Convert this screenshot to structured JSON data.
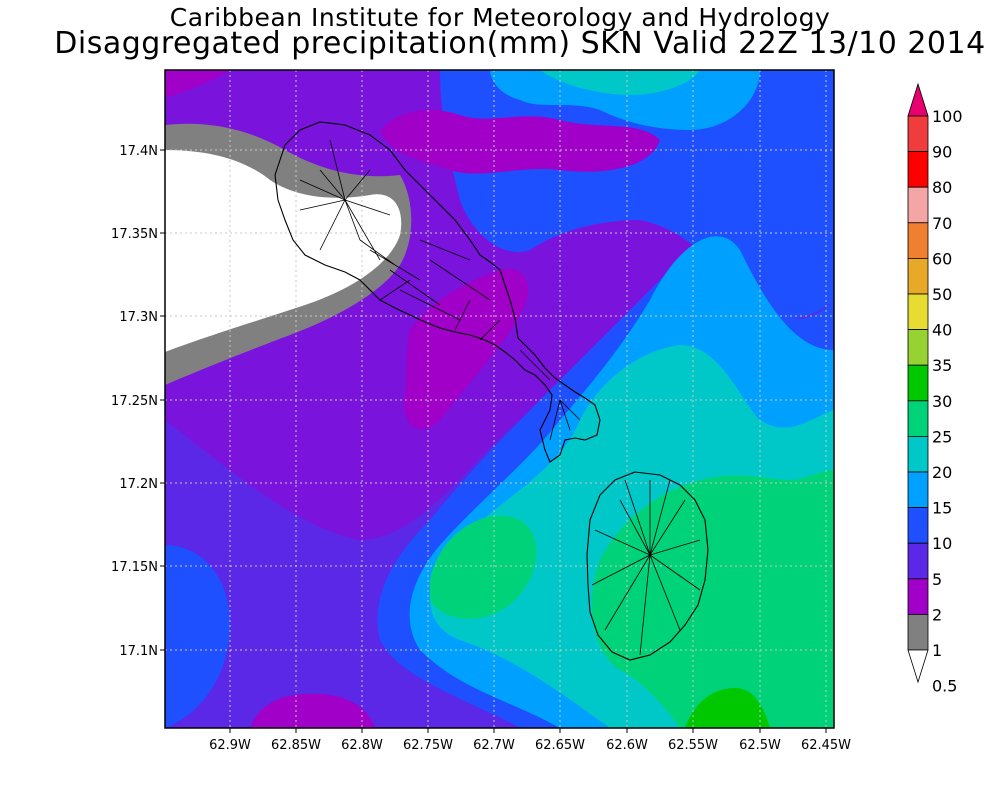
{
  "header": {
    "title": "Caribbean Institute for Meteorology and Hydrology",
    "subtitle": "Disaggregated precipitation(mm) SKN Valid 22Z 13/10 2014"
  },
  "axes": {
    "y_ticks": [
      "17.4N",
      "17.35N",
      "17.3N",
      "17.25N",
      "17.2N",
      "17.15N",
      "17.1N"
    ],
    "x_ticks": [
      "62.9W",
      "62.85W",
      "62.8W",
      "62.75W",
      "62.7W",
      "62.65W",
      "62.6W",
      "62.55W",
      "62.5W",
      "62.45W"
    ]
  },
  "legend": {
    "labels": [
      "100",
      "90",
      "80",
      "70",
      "60",
      "50",
      "40",
      "35",
      "30",
      "25",
      "20",
      "15",
      "10",
      "5",
      "2",
      "1",
      "0.5"
    ],
    "colors": [
      "#e8006e",
      "#f03c3c",
      "#ff0000",
      "#f4a6a6",
      "#f08030",
      "#e8a828",
      "#e6dc32",
      "#96d232",
      "#00c800",
      "#00d27a",
      "#00c8c8",
      "#00a0ff",
      "#1e50ff",
      "#5a28e6",
      "#a000c8",
      "#808080",
      "#ffffff"
    ]
  },
  "palette": {
    "white": "#ffffff",
    "gray": "#808080",
    "magenta": "#a000c8",
    "violet": "#7a14dc",
    "indigo": "#5a28e6",
    "blue": "#1e50ff",
    "lightblue": "#00a0ff",
    "cyan": "#00c8c8",
    "teal": "#00d27a",
    "green": "#00c800"
  }
}
